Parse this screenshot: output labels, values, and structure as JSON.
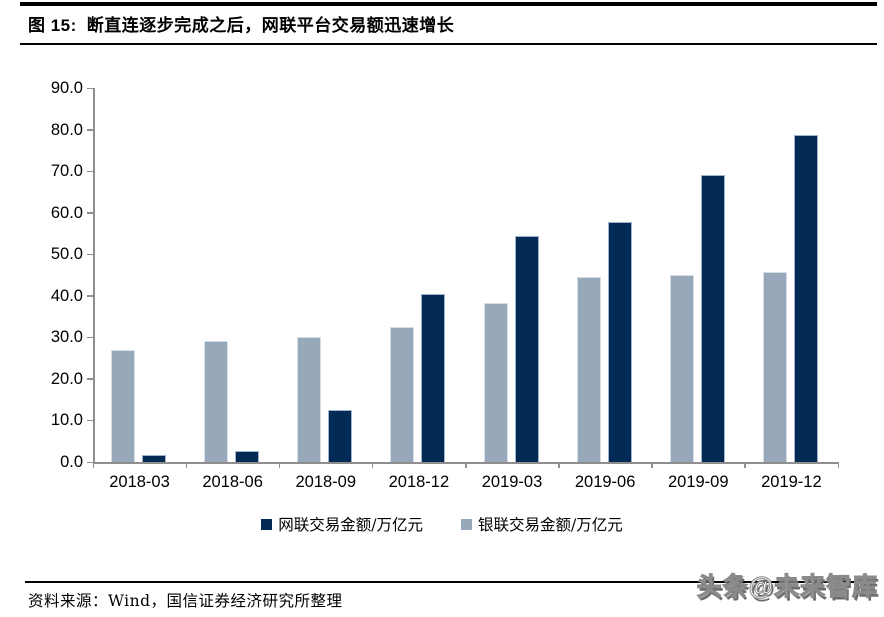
{
  "title": {
    "figure_label": "图 15:",
    "text": "断直连逐步完成之后，网联平台交易额迅速增长"
  },
  "chart_data": {
    "type": "bar",
    "categories": [
      "2018-03",
      "2018-06",
      "2018-09",
      "2018-12",
      "2019-03",
      "2019-06",
      "2019-09",
      "2019-12"
    ],
    "series": [
      {
        "name": "网联交易金额/万亿元",
        "color": "#032a54",
        "border_color": "#9fb3ca",
        "values": [
          1.8,
          2.6,
          12.6,
          40.5,
          54.5,
          57.8,
          69.0,
          78.6
        ]
      },
      {
        "name": "银联交易金额/万亿元",
        "color": "#97a8ba",
        "border_color": "#d6dce3",
        "values": [
          27.0,
          29.0,
          30.2,
          32.6,
          38.2,
          44.6,
          45.0,
          45.8
        ]
      }
    ],
    "title": "",
    "xlabel": "",
    "ylabel": "",
    "ylim": [
      0,
      90
    ],
    "ytick_step": 10,
    "ytick_labels": [
      "0.0",
      "10.0",
      "20.0",
      "30.0",
      "40.0",
      "50.0",
      "60.0",
      "70.0",
      "80.0",
      "90.0"
    ],
    "grid": false,
    "legend_position": "bottom",
    "axis_color": "#8f8f8f",
    "series_draw_order": [
      1,
      0
    ]
  },
  "footer": {
    "source": "资料来源：Wind，国信证券经济研究所整理",
    "watermark": "头条@未来智库"
  }
}
